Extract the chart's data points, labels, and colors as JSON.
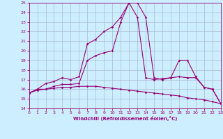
{
  "xlabel": "Windchill (Refroidissement éolien,°C)",
  "bg_color": "#cceeff",
  "grid_color": "#aabbcc",
  "line_color": "#990077",
  "xmin": 0,
  "xmax": 23,
  "ymin": 14,
  "ymax": 25,
  "line1_x": [
    0,
    1,
    2,
    3,
    4,
    5,
    6,
    7,
    8,
    9,
    10,
    11,
    12,
    13,
    14,
    15,
    16,
    17,
    18,
    19,
    20,
    21,
    22,
    23
  ],
  "line1_y": [
    15.6,
    16.0,
    16.6,
    16.8,
    17.2,
    17.0,
    17.3,
    20.7,
    21.2,
    22.0,
    22.5,
    23.5,
    25.0,
    23.5,
    17.2,
    17.0,
    17.1,
    17.2,
    17.3,
    17.2,
    17.2,
    16.2,
    16.0,
    14.5
  ],
  "line2_x": [
    0,
    1,
    2,
    3,
    4,
    5,
    6,
    7,
    8,
    9,
    10,
    11,
    12,
    13,
    14,
    15,
    16,
    17,
    18,
    19,
    20,
    21,
    22,
    23
  ],
  "line2_y": [
    15.6,
    16.0,
    16.0,
    16.3,
    16.5,
    16.5,
    16.6,
    19.0,
    19.5,
    19.8,
    20.0,
    23.0,
    25.0,
    25.0,
    23.5,
    17.2,
    17.0,
    17.2,
    19.0,
    19.0,
    17.3,
    16.2,
    16.0,
    14.5
  ],
  "line3_x": [
    0,
    1,
    2,
    3,
    4,
    5,
    6,
    7,
    8,
    9,
    10,
    11,
    12,
    13,
    14,
    15,
    16,
    17,
    18,
    19,
    20,
    21,
    22,
    23
  ],
  "line3_y": [
    15.6,
    15.9,
    16.0,
    16.1,
    16.2,
    16.2,
    16.3,
    16.3,
    16.3,
    16.2,
    16.1,
    16.0,
    15.9,
    15.8,
    15.7,
    15.6,
    15.5,
    15.4,
    15.3,
    15.1,
    15.0,
    14.9,
    14.7,
    14.5
  ]
}
